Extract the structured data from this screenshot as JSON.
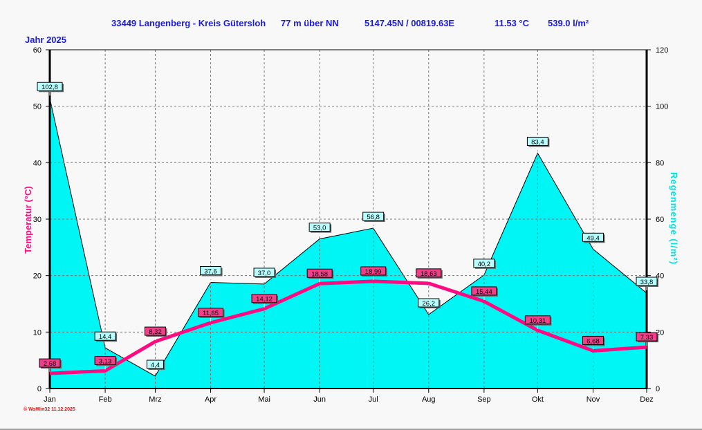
{
  "header": {
    "station": "33449 Langenberg - Kreis Gütersloh",
    "altitude": "77 m über NN",
    "coords": "5147.45N / 00819.63E",
    "mean_temp": "11.53 °C",
    "total_rain": "539.0 l/m²",
    "year": "Jahr  2025"
  },
  "footer": "© WsWin32  11.12.2025",
  "chart_data": {
    "type": "line+area",
    "categories": [
      "Jan",
      "Feb",
      "Mrz",
      "Apr",
      "Mai",
      "Jun",
      "Jul",
      "Aug",
      "Sep",
      "Okt",
      "Nov",
      "Dez"
    ],
    "x_days": [
      0,
      31,
      59,
      90,
      120,
      151,
      181,
      212,
      243,
      273,
      304,
      334
    ],
    "series": [
      {
        "name": "Regenmenge",
        "axis": "right",
        "type": "area",
        "color": "#00f5f5",
        "values": [
          102.8,
          14.4,
          4.4,
          37.6,
          37.0,
          53.0,
          56.8,
          26.2,
          40.2,
          83.4,
          49.4,
          33.8
        ],
        "labels": [
          "102,8",
          "14,4",
          "4,4",
          "37,6",
          "37,0",
          "53,0",
          "56,8",
          "26,2",
          "40,2",
          "83,4",
          "49,4",
          "33,8"
        ]
      },
      {
        "name": "Temperatur",
        "axis": "left",
        "type": "line",
        "color": "#ff0a80",
        "values": [
          2.68,
          3.13,
          8.32,
          11.65,
          14.12,
          18.58,
          18.99,
          18.63,
          15.44,
          10.31,
          6.68,
          7.33
        ],
        "labels": [
          "2,68",
          "3,13",
          "8,32",
          "11,65",
          "14,12",
          "18,58",
          "18,99",
          "18,63",
          "15,44",
          "10,31",
          "6,68",
          "7,33"
        ]
      }
    ],
    "ylabel": "Temperatur  (°C)",
    "y2label": "Regenmenge  (l/m²)",
    "ylim": [
      0,
      60
    ],
    "y2lim": [
      0,
      120
    ],
    "yticks": [
      "0",
      "10",
      "20",
      "30",
      "40",
      "50",
      "60"
    ],
    "y2ticks": [
      "0",
      "20",
      "40",
      "60",
      "80",
      "100",
      "120"
    ],
    "grid": true
  }
}
